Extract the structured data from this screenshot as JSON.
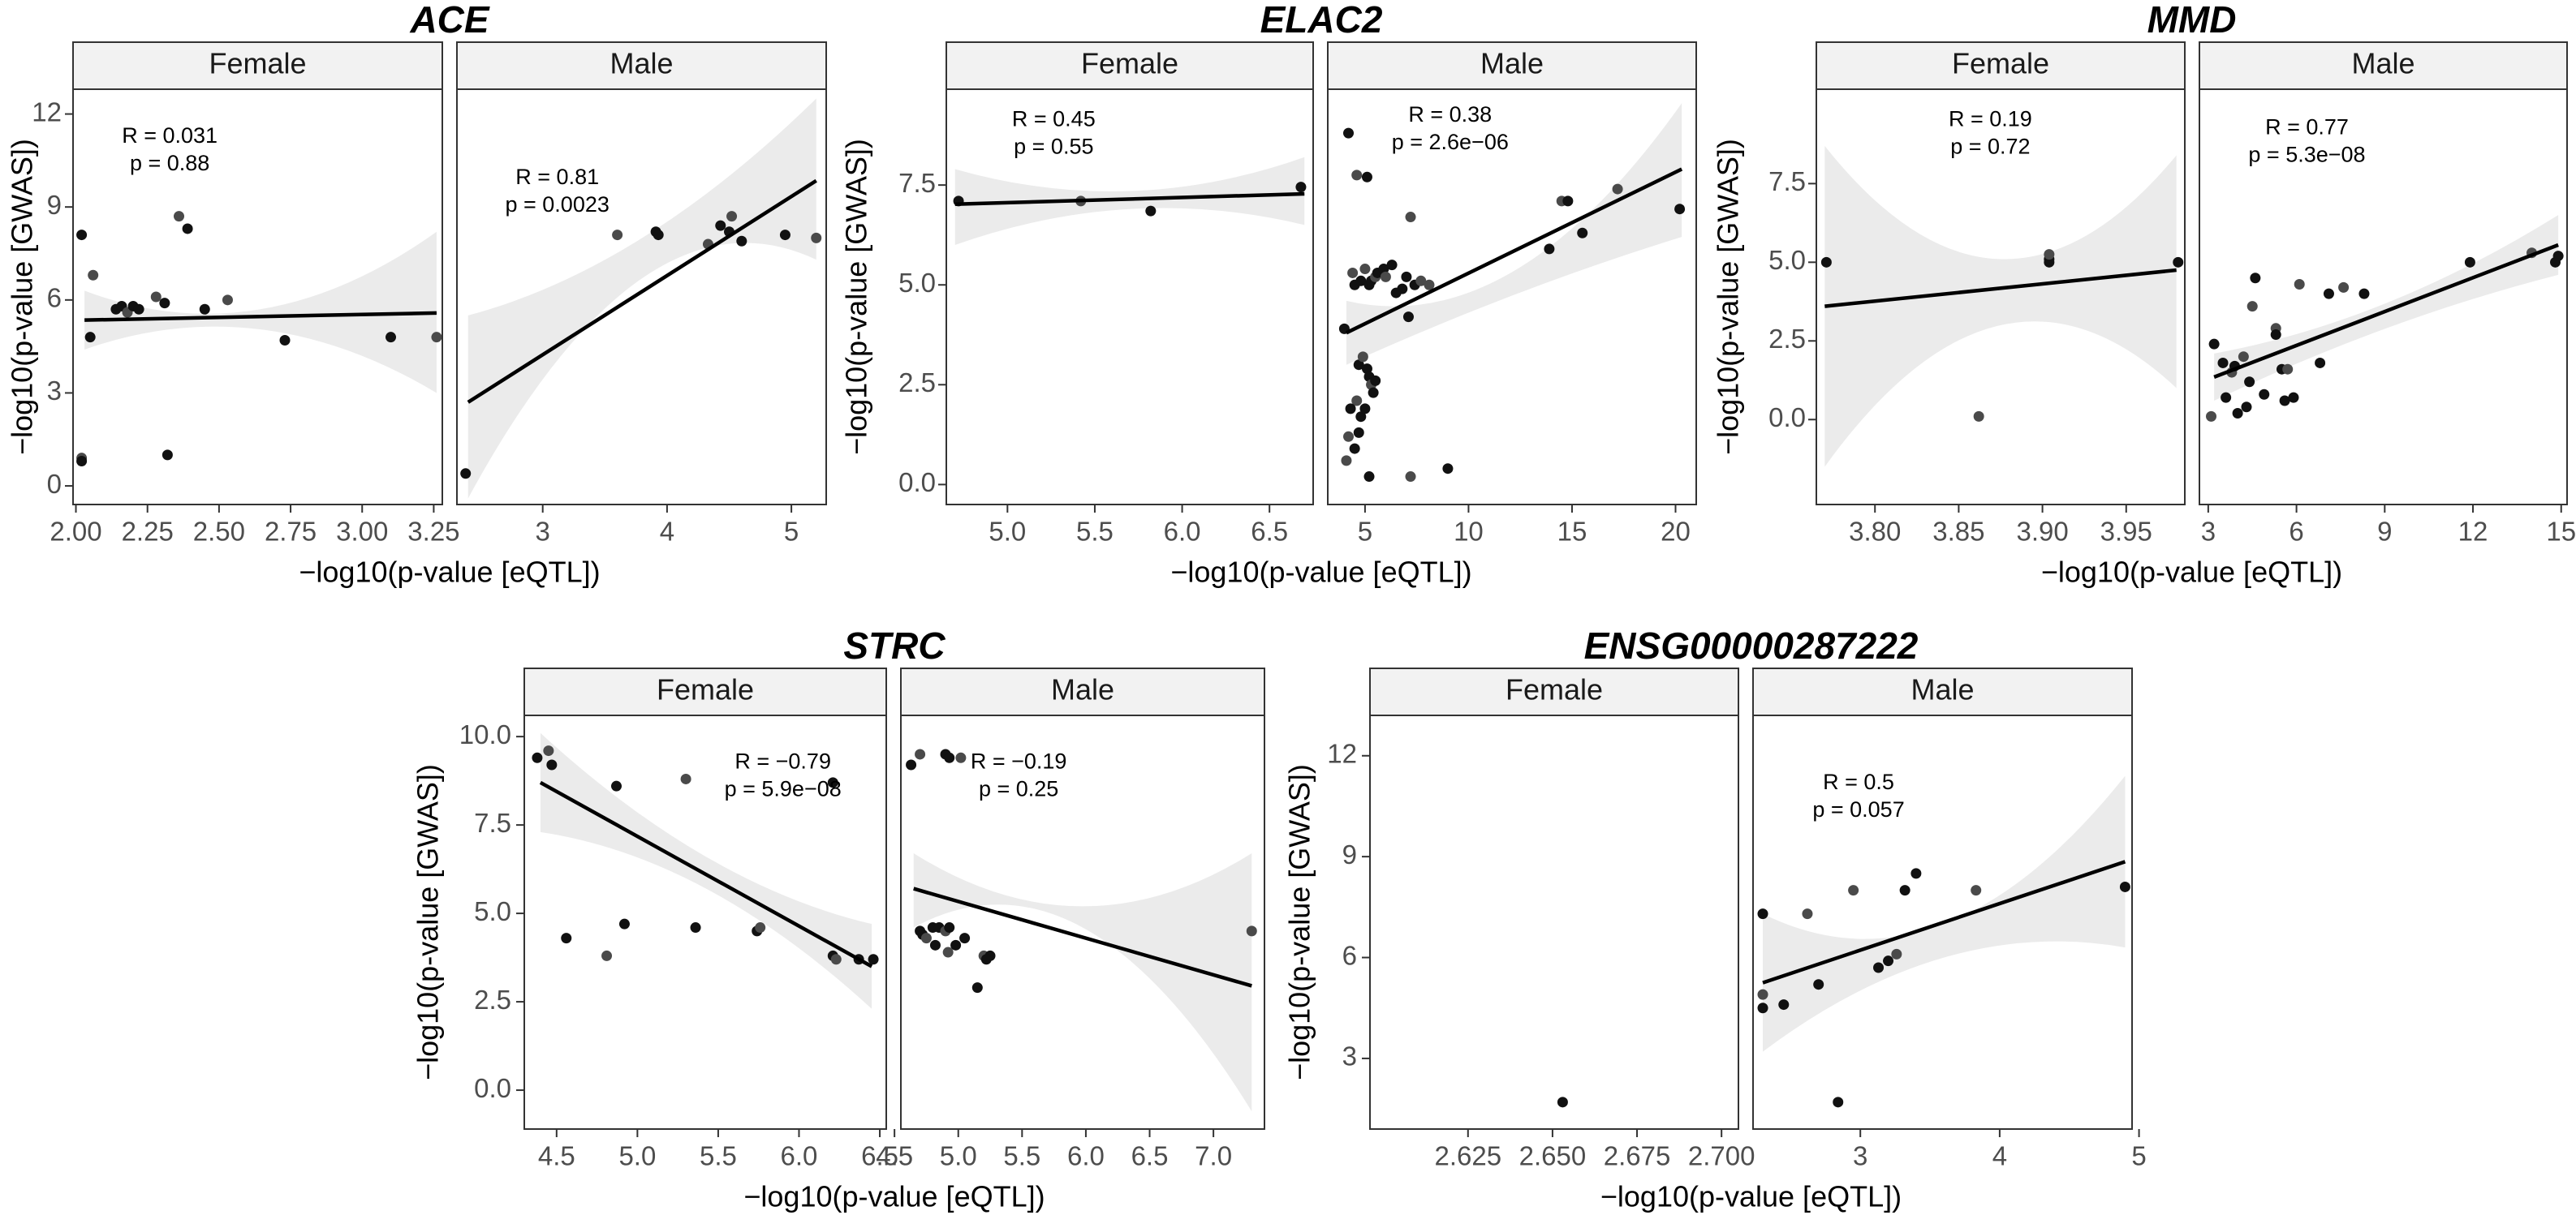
{
  "chart_data": [
    {
      "gene": "ACE",
      "ylabel": "−log10(p-value [GWAS])",
      "xlabel": "−log10(p-value [eQTL])",
      "ylim": [
        -0.6,
        12.8
      ],
      "yticks": [
        0,
        3,
        6,
        9,
        12
      ],
      "panels": [
        {
          "sex": "Female",
          "xlim": [
            1.99,
            3.28
          ],
          "xticks": [
            "2.00",
            "2.25",
            "2.50",
            "2.75",
            "3.00",
            "3.25"
          ],
          "R": "R = 0.031",
          "p": "p = 0.88",
          "fit": {
            "x0": 2.03,
            "y0": 5.35,
            "x1": 3.26,
            "y1": 5.58
          },
          "band": {
            "lo0": 4.4,
            "hi0": 6.3,
            "lom": 5.05,
            "him": 5.7,
            "lo1": 3.0,
            "hi1": 8.2
          },
          "points": [
            [
              2.02,
              8.1
            ],
            [
              2.02,
              0.9
            ],
            [
              2.02,
              0.8
            ],
            [
              2.05,
              4.8
            ],
            [
              2.06,
              6.8
            ],
            [
              2.14,
              5.7
            ],
            [
              2.16,
              5.8
            ],
            [
              2.18,
              5.6
            ],
            [
              2.2,
              5.8
            ],
            [
              2.22,
              5.7
            ],
            [
              2.28,
              6.1
            ],
            [
              2.31,
              5.9
            ],
            [
              2.32,
              1.0
            ],
            [
              2.36,
              8.7
            ],
            [
              2.39,
              8.3
            ],
            [
              2.45,
              5.7
            ],
            [
              2.53,
              6.0
            ],
            [
              2.73,
              4.7
            ],
            [
              3.1,
              4.8
            ],
            [
              3.26,
              4.8
            ]
          ]
        },
        {
          "sex": "Male",
          "xlim": [
            2.31,
            5.28
          ],
          "xticks": [
            "3",
            "4",
            "5"
          ],
          "R": "R = 0.81",
          "p": "p = 0.0023",
          "fit": {
            "x0": 2.4,
            "y0": 2.7,
            "x1": 5.2,
            "y1": 9.85
          },
          "band": {
            "lo0": -0.4,
            "hi0": 5.5,
            "lom": 6.7,
            "him": 8.0,
            "lo1": 7.3,
            "hi1": 12.5
          },
          "points": [
            [
              2.38,
              0.4
            ],
            [
              3.6,
              8.1
            ],
            [
              3.91,
              8.2
            ],
            [
              3.93,
              8.1
            ],
            [
              4.33,
              7.8
            ],
            [
              4.43,
              8.4
            ],
            [
              4.5,
              8.2
            ],
            [
              4.52,
              8.7
            ],
            [
              4.6,
              7.9
            ],
            [
              4.95,
              8.1
            ],
            [
              5.2,
              8.0
            ]
          ]
        }
      ]
    },
    {
      "gene": "ELAC2",
      "ylabel": "−log10(p-value [GWAS])",
      "xlabel": "−log10(p-value [eQTL])",
      "ylim": [
        -0.5,
        9.9
      ],
      "yticks": [
        "0.0",
        "2.5",
        "5.0",
        "7.5"
      ],
      "panels": [
        {
          "sex": "Female",
          "xlim": [
            4.65,
            6.75
          ],
          "xticks": [
            "5.0",
            "5.5",
            "6.0",
            "6.5"
          ],
          "R": "R = 0.45",
          "p": "p = 0.55",
          "fit": {
            "x0": 4.7,
            "y0": 7.02,
            "x1": 6.7,
            "y1": 7.28
          },
          "band": {
            "lo0": 6.0,
            "hi0": 7.9,
            "lom": 6.9,
            "him": 7.35,
            "lo1": 6.5,
            "hi1": 8.2
          },
          "points": [
            [
              4.72,
              7.1
            ],
            [
              5.42,
              7.1
            ],
            [
              5.82,
              6.85
            ],
            [
              6.68,
              7.45
            ]
          ]
        },
        {
          "sex": "Male",
          "xlim": [
            3.2,
            21.0
          ],
          "xticks": [
            "5",
            "10",
            "15",
            "20"
          ],
          "R": "R = 0.38",
          "p": "p = 2.6e−06",
          "fit": {
            "x0": 4.1,
            "y0": 3.8,
            "x1": 20.3,
            "y1": 7.9
          },
          "band": {
            "lo0": 3.0,
            "hi0": 4.6,
            "lom": 4.75,
            "him": 5.35,
            "lo1": 6.2,
            "hi1": 9.55
          },
          "points": [
            [
              4.2,
              8.8
            ],
            [
              4.6,
              7.75
            ],
            [
              5.1,
              7.7
            ],
            [
              4.0,
              3.9
            ],
            [
              4.4,
              5.3
            ],
            [
              4.5,
              5.0
            ],
            [
              4.8,
              5.1
            ],
            [
              5.0,
              5.4
            ],
            [
              5.2,
              5.0
            ],
            [
              5.3,
              5.1
            ],
            [
              5.5,
              5.2
            ],
            [
              5.6,
              5.3
            ],
            [
              5.9,
              5.4
            ],
            [
              6.0,
              5.2
            ],
            [
              6.3,
              5.5
            ],
            [
              4.7,
              3.0
            ],
            [
              4.9,
              3.2
            ],
            [
              5.1,
              2.9
            ],
            [
              5.2,
              2.7
            ],
            [
              5.3,
              2.5
            ],
            [
              5.4,
              2.3
            ],
            [
              5.5,
              2.6
            ],
            [
              4.6,
              2.1
            ],
            [
              4.3,
              1.9
            ],
            [
              4.8,
              1.7
            ],
            [
              4.2,
              1.2
            ],
            [
              4.7,
              1.3
            ],
            [
              5.0,
              1.9
            ],
            [
              4.1,
              0.6
            ],
            [
              4.5,
              0.9
            ],
            [
              5.2,
              0.2
            ],
            [
              7.2,
              0.2
            ],
            [
              9.0,
              0.4
            ],
            [
              7.1,
              4.2
            ],
            [
              7.2,
              6.7
            ],
            [
              6.8,
              4.9
            ],
            [
              7.4,
              5.0
            ],
            [
              7.7,
              5.1
            ],
            [
              7.0,
              5.2
            ],
            [
              13.9,
              5.9
            ],
            [
              14.5,
              7.1
            ],
            [
              14.8,
              7.1
            ],
            [
              15.5,
              6.3
            ],
            [
              17.2,
              7.4
            ],
            [
              20.2,
              6.9
            ],
            [
              6.5,
              4.8
            ],
            [
              8.1,
              5.0
            ]
          ]
        }
      ]
    },
    {
      "gene": "MMD",
      "ylabel": "−log10(p-value [GWAS])",
      "xlabel": "−log10(p-value [eQTL])",
      "ylim": [
        -2.7,
        10.5
      ],
      "yticks": [
        "0.0",
        "2.5",
        "5.0",
        "7.5"
      ],
      "panels": [
        {
          "sex": "Female",
          "xlim": [
            3.765,
            3.985
          ],
          "xticks": [
            "3.80",
            "3.85",
            "3.90",
            "3.95"
          ],
          "R": "R = 0.19",
          "p": "p = 0.72",
          "fit": {
            "x0": 3.77,
            "y0": 3.6,
            "x1": 3.98,
            "y1": 4.75
          },
          "band": {
            "lo0": -1.5,
            "hi0": 8.7,
            "lom": 3.0,
            "him": 5.1,
            "lo1": 1.0,
            "hi1": 8.4
          },
          "points": [
            [
              3.771,
              5.0
            ],
            [
              3.862,
              0.1
            ],
            [
              3.904,
              5.0
            ],
            [
              3.904,
              5.1
            ],
            [
              3.904,
              5.25
            ],
            [
              3.981,
              5.0
            ]
          ]
        },
        {
          "sex": "Male",
          "xlim": [
            2.7,
            15.2
          ],
          "xticks": [
            "3",
            "6",
            "9",
            "12",
            "15"
          ],
          "R": "R = 0.77",
          "p": "p = 5.3e−08",
          "fit": {
            "x0": 3.2,
            "y0": 1.35,
            "x1": 14.9,
            "y1": 5.55
          },
          "band": {
            "lo0": 0.6,
            "hi0": 2.1,
            "lom": 2.9,
            "him": 3.7,
            "lo1": 4.6,
            "hi1": 6.5
          },
          "points": [
            [
              3.2,
              2.4
            ],
            [
              3.1,
              0.1
            ],
            [
              3.5,
              1.8
            ],
            [
              3.6,
              0.7
            ],
            [
              3.8,
              1.5
            ],
            [
              3.9,
              1.7
            ],
            [
              4.0,
              0.2
            ],
            [
              4.2,
              2.0
            ],
            [
              4.3,
              0.4
            ],
            [
              4.4,
              1.2
            ],
            [
              4.5,
              3.6
            ],
            [
              4.6,
              4.5
            ],
            [
              4.9,
              0.8
            ],
            [
              5.3,
              2.9
            ],
            [
              5.3,
              2.7
            ],
            [
              5.5,
              1.6
            ],
            [
              5.7,
              1.6
            ],
            [
              5.6,
              0.6
            ],
            [
              5.9,
              0.7
            ],
            [
              6.1,
              4.3
            ],
            [
              6.8,
              1.8
            ],
            [
              7.1,
              4.0
            ],
            [
              7.6,
              4.2
            ],
            [
              8.3,
              4.0
            ],
            [
              11.9,
              5.0
            ],
            [
              14.0,
              5.3
            ],
            [
              14.8,
              5.0
            ],
            [
              14.9,
              5.2
            ]
          ]
        }
      ]
    },
    {
      "gene": "STRC",
      "ylabel": "−log10(p-value [GWAS])",
      "xlabel": "−log10(p-value [eQTL])",
      "ylim": [
        -1.1,
        10.6
      ],
      "yticks": [
        "0.0",
        "2.5",
        "5.0",
        "7.5",
        "10.0"
      ],
      "panels": [
        {
          "sex": "Female",
          "xlim": [
            4.3,
            6.54
          ],
          "xticks": [
            "4.5",
            "5.0",
            "5.5",
            "6.0",
            "6.5"
          ],
          "R": "R = −0.79",
          "p": "p = 5.9e−08",
          "fit": {
            "x0": 4.4,
            "y0": 8.7,
            "x1": 6.45,
            "y1": 3.5
          },
          "band": {
            "lo0": 7.3,
            "hi0": 10.1,
            "lom": 5.7,
            "him": 6.6,
            "lo1": 2.3,
            "hi1": 4.7
          },
          "points": [
            [
              4.38,
              9.4
            ],
            [
              4.45,
              9.6
            ],
            [
              4.47,
              9.2
            ],
            [
              4.56,
              4.3
            ],
            [
              4.81,
              3.8
            ],
            [
              4.87,
              8.6
            ],
            [
              4.92,
              4.7
            ],
            [
              5.3,
              8.8
            ],
            [
              5.36,
              4.6
            ],
            [
              5.74,
              4.5
            ],
            [
              5.76,
              4.6
            ],
            [
              6.21,
              8.7
            ],
            [
              6.21,
              3.8
            ],
            [
              6.23,
              3.7
            ],
            [
              6.37,
              3.7
            ],
            [
              6.46,
              3.7
            ]
          ]
        },
        {
          "sex": "Male",
          "xlim": [
            4.55,
            7.4
          ],
          "xticks": [
            "4.5",
            "5.0",
            "5.5",
            "6.0",
            "6.5",
            "7.0"
          ],
          "R": "R = −0.19",
          "p": "p = 0.25",
          "fit": {
            "x0": 4.65,
            "y0": 5.7,
            "x1": 7.3,
            "y1": 2.95
          },
          "band": {
            "lo0": 4.6,
            "hi0": 6.7,
            "lom": 4.6,
            "him": 5.2,
            "lo1": -0.6,
            "hi1": 6.7
          },
          "points": [
            [
              4.63,
              9.2
            ],
            [
              4.7,
              9.5
            ],
            [
              4.9,
              9.5
            ],
            [
              4.93,
              9.4
            ],
            [
              5.02,
              9.4
            ],
            [
              4.7,
              4.5
            ],
            [
              4.72,
              4.4
            ],
            [
              4.75,
              4.3
            ],
            [
              4.8,
              4.6
            ],
            [
              4.85,
              4.6
            ],
            [
              4.9,
              4.5
            ],
            [
              4.93,
              4.6
            ],
            [
              4.98,
              4.1
            ],
            [
              4.92,
              3.9
            ],
            [
              5.05,
              4.3
            ],
            [
              5.15,
              2.9
            ],
            [
              5.2,
              3.8
            ],
            [
              5.25,
              3.8
            ],
            [
              5.22,
              3.7
            ],
            [
              7.3,
              4.5
            ],
            [
              4.82,
              4.1
            ]
          ]
        }
      ]
    },
    {
      "gene": "ENSG00000287222",
      "ylabel": "−log10(p-value [GWAS])",
      "xlabel": "−log10(p-value [eQTL])",
      "ylim": [
        0.9,
        13.2
      ],
      "yticks": [
        3,
        6,
        9,
        12
      ],
      "panels": [
        {
          "sex": "Female",
          "xlim": [
            2.596,
            2.705
          ],
          "xticks": [
            "2.625",
            "2.650",
            "2.675",
            "2.700"
          ],
          "R": "",
          "p": "",
          "fit": null,
          "band": null,
          "points": [
            [
              2.653,
              1.7
            ]
          ]
        },
        {
          "sex": "Male",
          "xlim": [
            2.23,
            4.95
          ],
          "xticks": [
            "3",
            "4",
            "5"
          ],
          "R": "R = 0.5",
          "p": "p = 0.057",
          "fit": {
            "x0": 2.3,
            "y0": 5.25,
            "x1": 4.9,
            "y1": 8.85
          },
          "band": {
            "lo0": 3.2,
            "hi0": 7.3,
            "lom": 6.0,
            "him": 7.0,
            "lo1": 6.3,
            "hi1": 11.4
          },
          "points": [
            [
              2.3,
              7.3
            ],
            [
              2.3,
              4.9
            ],
            [
              2.3,
              4.5
            ],
            [
              2.45,
              4.6
            ],
            [
              2.62,
              7.3
            ],
            [
              2.7,
              5.2
            ],
            [
              2.84,
              1.7
            ],
            [
              2.95,
              8.0
            ],
            [
              3.13,
              5.7
            ],
            [
              3.2,
              5.9
            ],
            [
              3.26,
              6.1
            ],
            [
              3.32,
              8.0
            ],
            [
              3.4,
              8.5
            ],
            [
              3.83,
              8.0
            ],
            [
              4.9,
              8.1
            ]
          ]
        }
      ]
    }
  ]
}
